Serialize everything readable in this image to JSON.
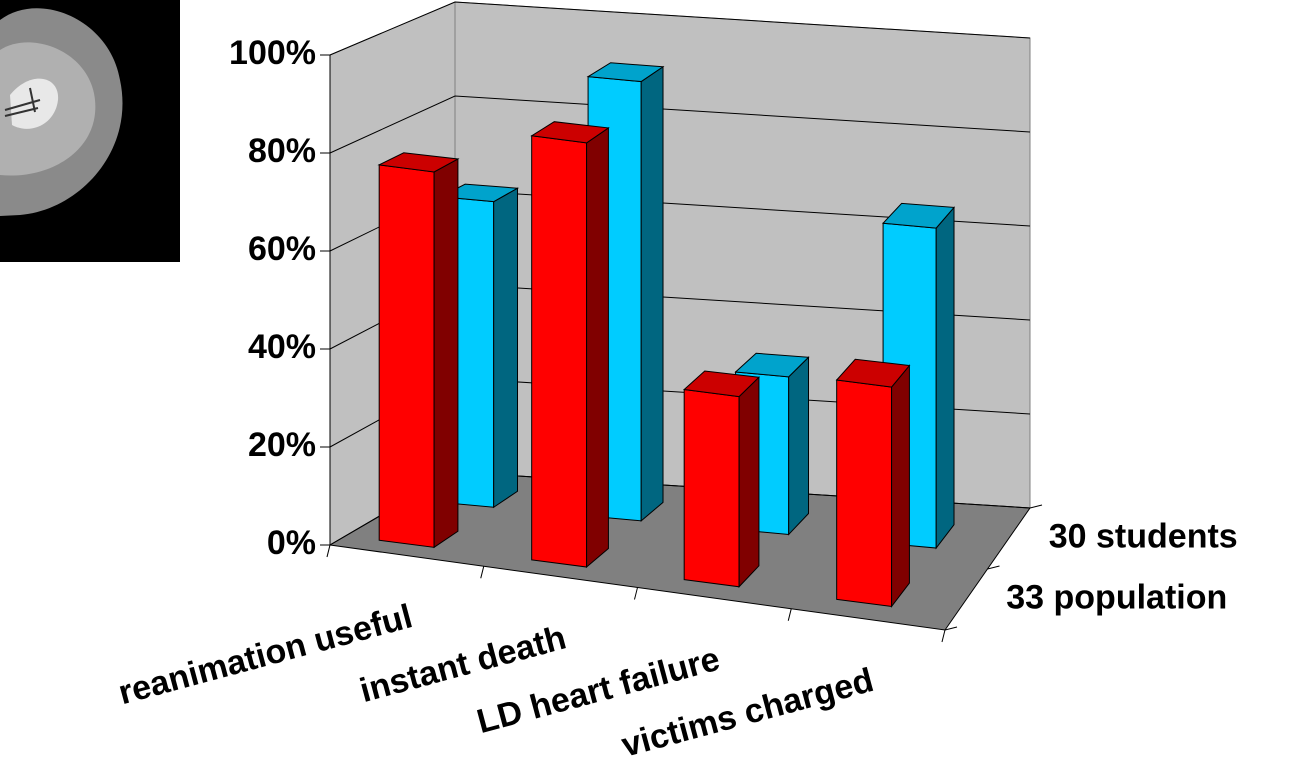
{
  "chart_data": {
    "type": "bar3d",
    "categories": [
      "reanimation useful",
      "instant death",
      "LD heart failure",
      "victims charged"
    ],
    "series": [
      {
        "name": "33 population",
        "color": "#ff0000",
        "values": [
          77,
          87,
          39,
          45
        ]
      },
      {
        "name": "30 students",
        "color": "#00ccff",
        "values": [
          64,
          92,
          33,
          67
        ]
      }
    ],
    "ylim": [
      0,
      100
    ],
    "yticks": [
      {
        "value": 0,
        "label": "0%"
      },
      {
        "value": 20,
        "label": "20%"
      },
      {
        "value": 40,
        "label": "40%"
      },
      {
        "value": 60,
        "label": "60%"
      },
      {
        "value": 80,
        "label": "80%"
      },
      {
        "value": 100,
        "label": "100%"
      }
    ],
    "grid": true
  }
}
